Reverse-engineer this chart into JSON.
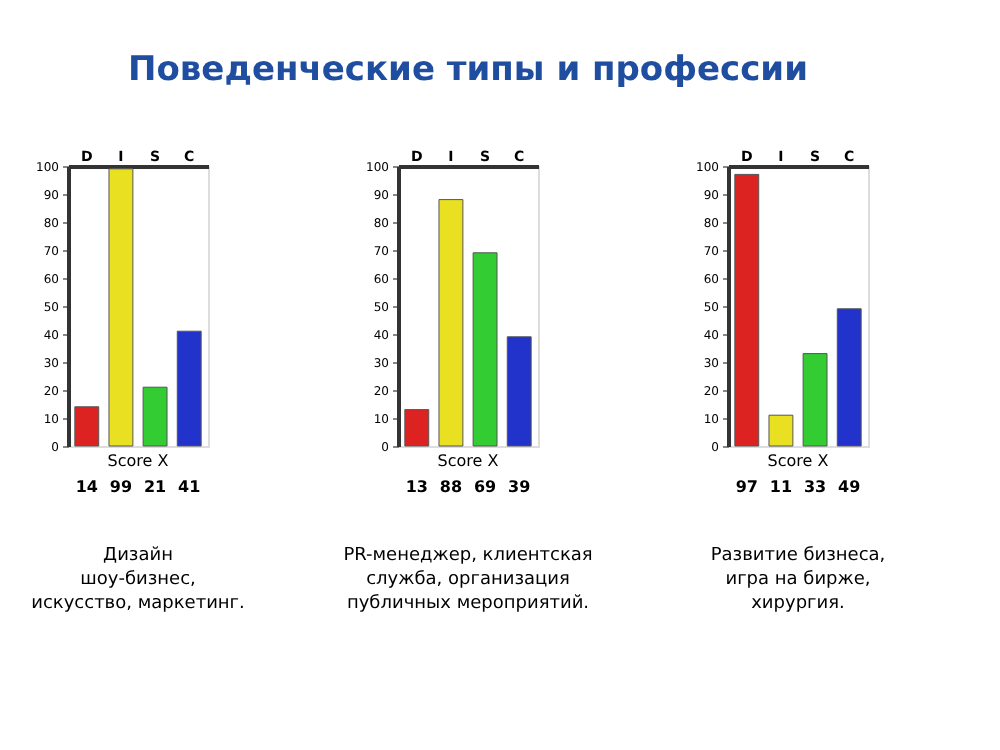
{
  "chart_data": [
    {
      "type": "bar",
      "xlabel": "Score X",
      "categories": [
        "D",
        "I",
        "S",
        "C"
      ],
      "values": [
        14,
        99,
        21,
        41
      ],
      "colors": [
        "#dd2222",
        "#e8e020",
        "#33cc33",
        "#2233cc"
      ],
      "ylim": [
        0,
        100
      ],
      "yticks": [
        0,
        10,
        20,
        30,
        40,
        50,
        60,
        70,
        80,
        90,
        100
      ],
      "data_labels": true,
      "annotations": [
        "Дизайн\nшоу-бизнес,\nискусство, маркетинг."
      ]
    },
    {
      "type": "bar",
      "title": "Поведенческие типы и профессии",
      "xlabel": "Score X",
      "categories": [
        "D",
        "I",
        "S",
        "C"
      ],
      "values": [
        13,
        88,
        69,
        39
      ],
      "colors": [
        "#dd2222",
        "#e8e020",
        "#33cc33",
        "#2233cc"
      ],
      "ylim": [
        0,
        100
      ],
      "yticks": [
        0,
        10,
        20,
        30,
        40,
        50,
        60,
        70,
        80,
        90,
        100
      ],
      "data_labels": true,
      "annotations": [
        "PR-менеджер, клиентская\nслужба, организация\nпубличных мероприятий."
      ]
    },
    {
      "type": "bar",
      "xlabel": "Score X",
      "categories": [
        "D",
        "I",
        "S",
        "C"
      ],
      "values": [
        97,
        11,
        33,
        49
      ],
      "colors": [
        "#dd2222",
        "#e8e020",
        "#33cc33",
        "#2233cc"
      ],
      "ylim": [
        0,
        100
      ],
      "yticks": [
        0,
        10,
        20,
        30,
        40,
        50,
        60,
        70,
        80,
        90,
        100
      ],
      "data_labels": true,
      "annotations": [
        "Развитие бизнеса,\nигра на бирже,\nхирургия."
      ]
    }
  ]
}
